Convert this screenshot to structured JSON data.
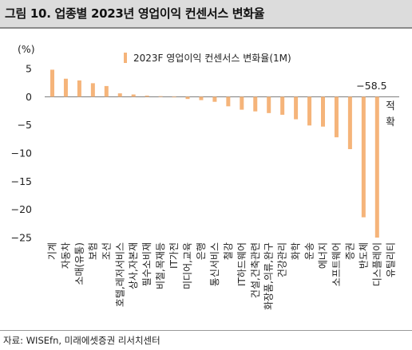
{
  "title": "그림 10. 업종별 2023년 영업이익 컨센서스 변화율",
  "source": "자료: WISEfn, 미래에셋증권 리서치센터",
  "chart_data": {
    "type": "bar",
    "title": "",
    "ylabel": "(%)",
    "ylim": [
      -25,
      5
    ],
    "yticks": [
      5,
      0,
      -5,
      -10,
      -15,
      -20,
      -25
    ],
    "bar_color": "#f5b47a",
    "legend": "2023F 영업이익 컨센서스 변화율(1M)",
    "legend_position": "top-right",
    "categories": [
      "기계",
      "자동차",
      "소매(유통)",
      "보험",
      "조선",
      "호텔,레저서비스",
      "상사,자본재",
      "필수소비재",
      "비철,목재등",
      "IT가전",
      "미디어,교육",
      "은행",
      "통신서비스",
      "철강",
      "IT하드웨어",
      "건설,건축관련",
      "화장품,의류,완구",
      "건강관리",
      "화학",
      "운송",
      "에너지",
      "소프트웨어",
      "증권",
      "반도체",
      "디스플레이",
      "유틸리티"
    ],
    "values": [
      4.8,
      3.2,
      2.9,
      2.4,
      1.9,
      0.6,
      0.4,
      0.2,
      0.1,
      0.0,
      -0.4,
      -0.6,
      -0.9,
      -1.7,
      -2.3,
      -2.6,
      -2.9,
      -3.2,
      -4.0,
      -5.1,
      -5.3,
      -7.2,
      -9.3,
      -21.4,
      -25.0,
      null
    ],
    "annotations": [
      {
        "text": "−58.5",
        "category": "디스플레이"
      },
      {
        "text": "적\n확",
        "category": "유틸리티"
      }
    ]
  }
}
